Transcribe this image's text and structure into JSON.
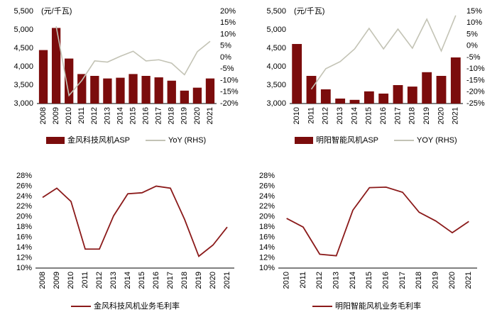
{
  "chart_data": [
    {
      "type": "combo",
      "ylabel": "(元/千瓦)",
      "categories": [
        "2008",
        "2009",
        "2010",
        "2011",
        "2012",
        "2013",
        "2014",
        "2015",
        "2016",
        "2017",
        "2018",
        "2019",
        "2020",
        "2021"
      ],
      "series": [
        {
          "name": "金风科技风机ASP",
          "color": "#7b0c0c",
          "values": [
            4450,
            5050,
            4220,
            3800,
            3750,
            3680,
            3700,
            3800,
            3750,
            3710,
            3620,
            3350,
            3430,
            3680
          ]
        },
        {
          "name": "YoY (RHS)",
          "color": "#c3c3b5",
          "axis": "y2",
          "values": [
            null,
            13.5,
            -16.5,
            -10,
            -1.5,
            -2,
            0.5,
            2.7,
            -1.5,
            -1,
            -2.5,
            -7.5,
            2.5,
            7
          ]
        }
      ],
      "ylim": [
        3000,
        5500
      ],
      "yticks": [
        {
          "value": 3000,
          "label": "3,000"
        },
        {
          "value": 3500,
          "label": "3,500"
        },
        {
          "value": 4000,
          "label": "4,000"
        },
        {
          "value": 4500,
          "label": "4,500"
        },
        {
          "value": 5000,
          "label": "5,000"
        },
        {
          "value": 5500,
          "label": "5,500"
        }
      ],
      "y2lim": [
        -20,
        20
      ],
      "y2ticks": [
        {
          "value": -20,
          "label": "-20%"
        },
        {
          "value": -15,
          "label": "-15%"
        },
        {
          "value": -10,
          "label": "-10%"
        },
        {
          "value": -5,
          "label": "-5%"
        },
        {
          "value": 0,
          "label": "0%"
        },
        {
          "value": 5,
          "label": "5%"
        },
        {
          "value": 10,
          "label": "10%"
        },
        {
          "value": 15,
          "label": "15%"
        },
        {
          "value": 20,
          "label": "20%"
        }
      ]
    },
    {
      "type": "combo",
      "ylabel": "(元/千瓦)",
      "categories": [
        "2010",
        "2011",
        "2012",
        "2013",
        "2014",
        "2015",
        "2016",
        "2017",
        "2018",
        "2019",
        "2020",
        "2021"
      ],
      "series": [
        {
          "name": "明阳智能风机ASP",
          "color": "#7b0c0c",
          "values": [
            4615,
            3750,
            3385,
            3135,
            3100,
            3330,
            3270,
            3500,
            3460,
            3850,
            3750,
            4250
          ]
        },
        {
          "name": "YOY (RHS)",
          "color": "#c3c3b5",
          "axis": "y2",
          "values": [
            null,
            -18.8,
            -9.9,
            -6.8,
            -1.3,
            7.6,
            -1.3,
            7.3,
            -1,
            11.6,
            -2.2,
            13.2
          ]
        }
      ],
      "ylim": [
        3000,
        5500
      ],
      "yticks": [
        {
          "value": 3000,
          "label": "3,000"
        },
        {
          "value": 3500,
          "label": "3,500"
        },
        {
          "value": 4000,
          "label": "4,000"
        },
        {
          "value": 4500,
          "label": "4,500"
        },
        {
          "value": 5000,
          "label": "5,000"
        },
        {
          "value": 5500,
          "label": "5,500"
        }
      ],
      "y2lim": [
        -25,
        15
      ],
      "y2ticks": [
        {
          "value": -25,
          "label": "-25%"
        },
        {
          "value": -20,
          "label": "-20%"
        },
        {
          "value": -15,
          "label": "-15%"
        },
        {
          "value": -10,
          "label": "-10%"
        },
        {
          "value": -5,
          "label": "-5%"
        },
        {
          "value": 0,
          "label": "0%"
        },
        {
          "value": 5,
          "label": "5%"
        },
        {
          "value": 10,
          "label": "10%"
        },
        {
          "value": 15,
          "label": "15%"
        }
      ]
    },
    {
      "type": "line",
      "categories": [
        "2008",
        "2009",
        "2010",
        "2011",
        "2012",
        "2013",
        "2014",
        "2015",
        "2016",
        "2017",
        "2018",
        "2019",
        "2020",
        "2021"
      ],
      "series": [
        {
          "name": "金风科技风机业务毛利率",
          "color": "#8b1a1a",
          "values": [
            23.8,
            25.6,
            23.0,
            13.7,
            13.7,
            20.2,
            24.5,
            24.7,
            26.0,
            25.6,
            19.5,
            12.3,
            14.5,
            18.0
          ]
        }
      ],
      "ylim": [
        10,
        28
      ],
      "yticks": [
        {
          "value": 10,
          "label": "10%"
        },
        {
          "value": 12,
          "label": "12%"
        },
        {
          "value": 14,
          "label": "14%"
        },
        {
          "value": 16,
          "label": "16%"
        },
        {
          "value": 18,
          "label": "18%"
        },
        {
          "value": 20,
          "label": "20%"
        },
        {
          "value": 22,
          "label": "22%"
        },
        {
          "value": 24,
          "label": "24%"
        },
        {
          "value": 26,
          "label": "26%"
        },
        {
          "value": 28,
          "label": "28%"
        }
      ]
    },
    {
      "type": "line",
      "categories": [
        "2010",
        "2011",
        "2012",
        "2013",
        "2014",
        "2015",
        "2016",
        "2017",
        "2018",
        "2019",
        "2020",
        "2021"
      ],
      "series": [
        {
          "name": "明阳智能风机业务毛利率",
          "color": "#8b1a1a",
          "values": [
            19.7,
            18.0,
            12.7,
            12.4,
            21.3,
            25.7,
            25.8,
            24.8,
            20.9,
            19.2,
            16.9,
            19.1
          ]
        }
      ],
      "ylim": [
        10,
        28
      ],
      "yticks": [
        {
          "value": 10,
          "label": "10%"
        },
        {
          "value": 12,
          "label": "12%"
        },
        {
          "value": 14,
          "label": "14%"
        },
        {
          "value": 16,
          "label": "16%"
        },
        {
          "value": 18,
          "label": "18%"
        },
        {
          "value": 20,
          "label": "20%"
        },
        {
          "value": 22,
          "label": "22%"
        },
        {
          "value": 24,
          "label": "24%"
        },
        {
          "value": 26,
          "label": "26%"
        },
        {
          "value": 28,
          "label": "28%"
        }
      ]
    }
  ]
}
